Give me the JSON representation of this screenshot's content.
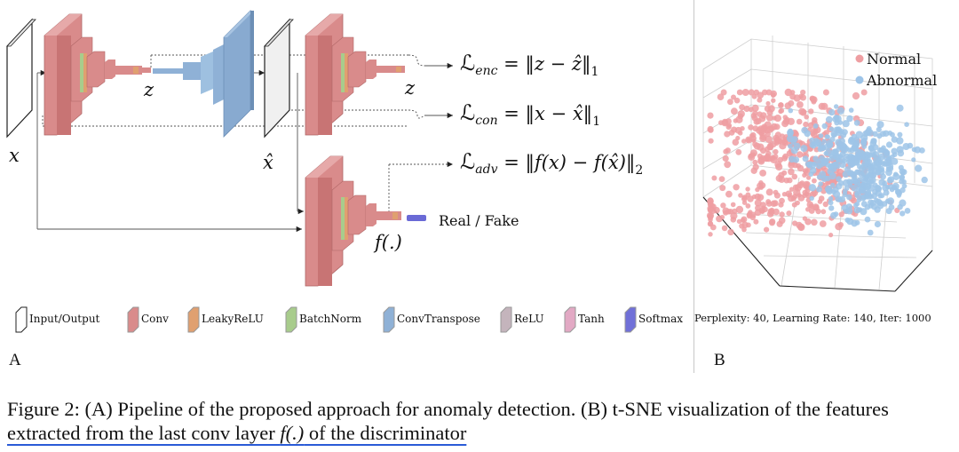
{
  "panel_a": {
    "label": "A",
    "var_x": "x",
    "var_xhat": "x̂",
    "var_z": "z",
    "var_z2": "z",
    "var_f": "f(.)",
    "real_fake": "Real / Fake",
    "loss_enc": {
      "sym": "ℒ",
      "sub": "enc",
      "rhs": " = ‖z − ẑ‖",
      "norm": "1"
    },
    "loss_con": {
      "sym": "ℒ",
      "sub": "con",
      "rhs": " = ‖x − x̂‖",
      "norm": "1"
    },
    "loss_adv": {
      "sym": "ℒ",
      "sub": "adv",
      "rhs": " = ‖f(x) − f(x̂)‖",
      "norm": "2"
    },
    "legend": [
      {
        "label": "Input/Output",
        "color": "#ffffff"
      },
      {
        "label": "Conv",
        "color": "#d98b8b"
      },
      {
        "label": "LeakyReLU",
        "color": "#e0a070"
      },
      {
        "label": "BatchNorm",
        "color": "#a8cc8c"
      },
      {
        "label": "ConvTranspose",
        "color": "#8fb1d6"
      },
      {
        "label": "ReLU",
        "color": "#c4b4bc"
      },
      {
        "label": "Tanh",
        "color": "#e2a9c4"
      },
      {
        "label": "Softmax",
        "color": "#7070d8"
      }
    ]
  },
  "panel_b": {
    "label": "B",
    "legend_normal": "Normal",
    "legend_abnormal": "Abnormal",
    "color_normal": "#ee9ea2",
    "color_abnormal": "#9dc4e8",
    "info": "Perplexity: 40, Learning Rate: 140, Iter: 1000"
  },
  "caption": {
    "part1": "Figure 2: (A) Pipeline of the proposed approach for anomaly detection. (B) t-SNE visualization of the features ",
    "part2": "extracted from the last conv layer ",
    "part3": "f(.)",
    "part4": " of the discriminator"
  }
}
